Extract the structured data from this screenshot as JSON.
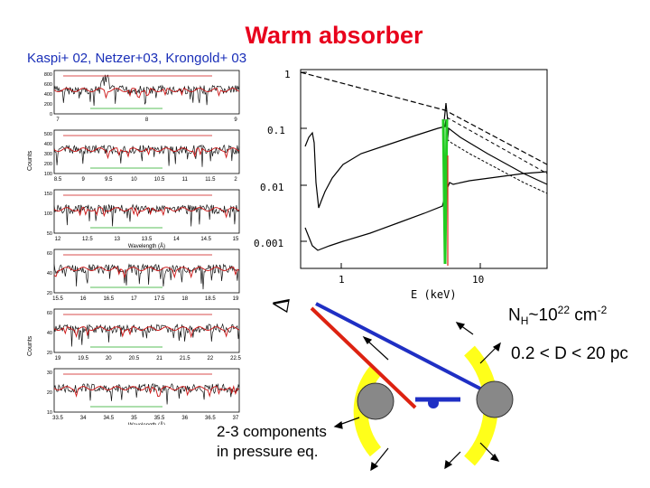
{
  "title": "Warm absorber",
  "references": "Kaspi+ 02, Netzer+03, Krongold+ 03",
  "spectra_panel": {
    "ylabel_counts_top": "Counts",
    "ylabel_counts_bottom": "Counts",
    "xlabel": "Wavelength (Å)",
    "rows": [
      {
        "yticks": [
          "800",
          "600",
          "400",
          "200",
          "0"
        ],
        "xticks": [
          "7",
          "8",
          "9"
        ]
      },
      {
        "yticks": [
          "500",
          "400",
          "300",
          "200",
          "100"
        ],
        "xticks": [
          "8.5",
          "9",
          "9.5",
          "10",
          "10.5",
          "11",
          "11.5",
          "2"
        ]
      },
      {
        "yticks": [
          "150",
          "100",
          "50"
        ],
        "xticks": [
          "12",
          "12.5",
          "13",
          "13.5",
          "14",
          "14.5",
          "15"
        ]
      },
      {
        "yticks": [
          "60",
          "40",
          "20"
        ],
        "xticks": [
          "15.5",
          "16",
          "16.5",
          "17",
          "17.5",
          "18",
          "18.5",
          "19"
        ]
      },
      {
        "yticks": [
          "60",
          "40",
          "20"
        ],
        "xticks": [
          "19",
          "19.5",
          "20",
          "20.5",
          "21",
          "21.5",
          "22",
          "22.5"
        ]
      },
      {
        "yticks": [
          "30",
          "20",
          "10"
        ],
        "xticks": [
          "33.5",
          "34",
          "34.5",
          "35",
          "35.5",
          "36",
          "36.5",
          "37"
        ]
      }
    ]
  },
  "model_plot": {
    "yticks": [
      "1",
      "0.1",
      "0.01",
      "0.001"
    ],
    "xticks": [
      "1",
      "10"
    ],
    "xlabel": "E (keV)"
  },
  "column_density": {
    "prefix": "N",
    "sub": "H",
    "mid": "~10",
    "sup1": "22",
    "unit": " cm",
    "sup2": "-2"
  },
  "distance": "0.2 < D < 20 pc",
  "components": [
    "2-3 components",
    "in pressure eq."
  ],
  "colors": {
    "title": "#e8001c",
    "refs": "#1a2fb8",
    "sightline_red": "#dd2211",
    "sightline_blue": "#1f2fc4",
    "clump_yellow": "#ffff1a",
    "clump_gray": "#888888"
  },
  "icons": [
    "delta-symbol",
    "outflow-arrow"
  ]
}
